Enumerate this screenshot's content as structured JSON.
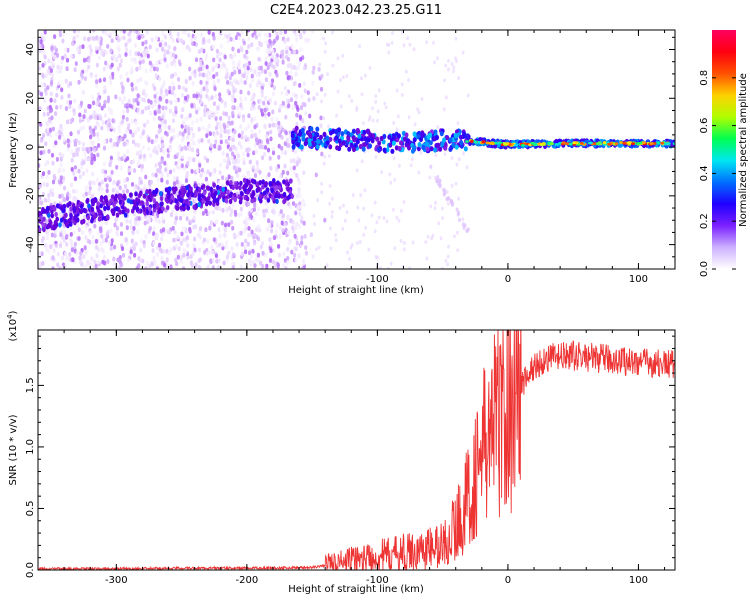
{
  "title": "C2E4.2023.042.23.25.G11",
  "chart_data": [
    {
      "type": "heatmap",
      "name": "spectrogram",
      "xlabel": "Height of straight line (km)",
      "ylabel": "Frequency (Hz)",
      "xlim": [
        -360,
        128
      ],
      "ylim": [
        -50,
        48
      ],
      "xticks": [
        -300,
        -200,
        -100,
        0,
        100
      ],
      "yticks": [
        -40,
        -20,
        0,
        20,
        40
      ],
      "colorbar": {
        "label": "Normalized spectral amplitude",
        "range": [
          0.0,
          1.0
        ],
        "ticks": [
          0.0,
          0.2,
          0.4,
          0.6,
          0.8
        ],
        "colormap": [
          "#ffffff",
          "#d9b8ff",
          "#a855f7",
          "#6a00d8",
          "#2a00ff",
          "#0080ff",
          "#00e0ff",
          "#00ff60",
          "#ffff00",
          "#ff8000",
          "#ff0000",
          "#ff0066"
        ]
      },
      "features": [
        {
          "name": "lower line",
          "x": [
            -360,
            -300,
            -250,
            -200,
            -165
          ],
          "freq": [
            -30,
            -24,
            -21,
            -18,
            -18
          ]
        },
        {
          "name": "upper line",
          "x": [
            -165,
            -120,
            -80,
            -40,
            -20,
            0,
            50,
            128
          ],
          "freq": [
            4,
            3,
            2,
            3,
            2,
            1,
            1.5,
            1.5
          ]
        }
      ]
    },
    {
      "type": "line",
      "name": "snr",
      "xlabel": "Height of straight line (km)",
      "ylabel": "SNR (10 * v/v)",
      "yscale_label": "(x10^4)",
      "xlim": [
        -360,
        128
      ],
      "ylim": [
        0,
        1.95
      ],
      "xticks": [
        -300,
        -200,
        -100,
        0,
        100
      ],
      "yticks": [
        0.0,
        0.5,
        1.0,
        1.5
      ],
      "series": [
        {
          "color": "#ee3333",
          "x": [
            -360,
            -300,
            -250,
            -200,
            -150,
            -130,
            -110,
            -90,
            -70,
            -50,
            -40,
            -30,
            -20,
            -10,
            0,
            10,
            20,
            30,
            50,
            70,
            90,
            110,
            128
          ],
          "y": [
            0.01,
            0.01,
            0.015,
            0.015,
            0.02,
            0.05,
            0.09,
            0.12,
            0.15,
            0.2,
            0.35,
            0.6,
            0.95,
            1.2,
            1.3,
            1.5,
            1.65,
            1.72,
            1.74,
            1.72,
            1.7,
            1.68,
            1.67
          ]
        }
      ]
    }
  ]
}
